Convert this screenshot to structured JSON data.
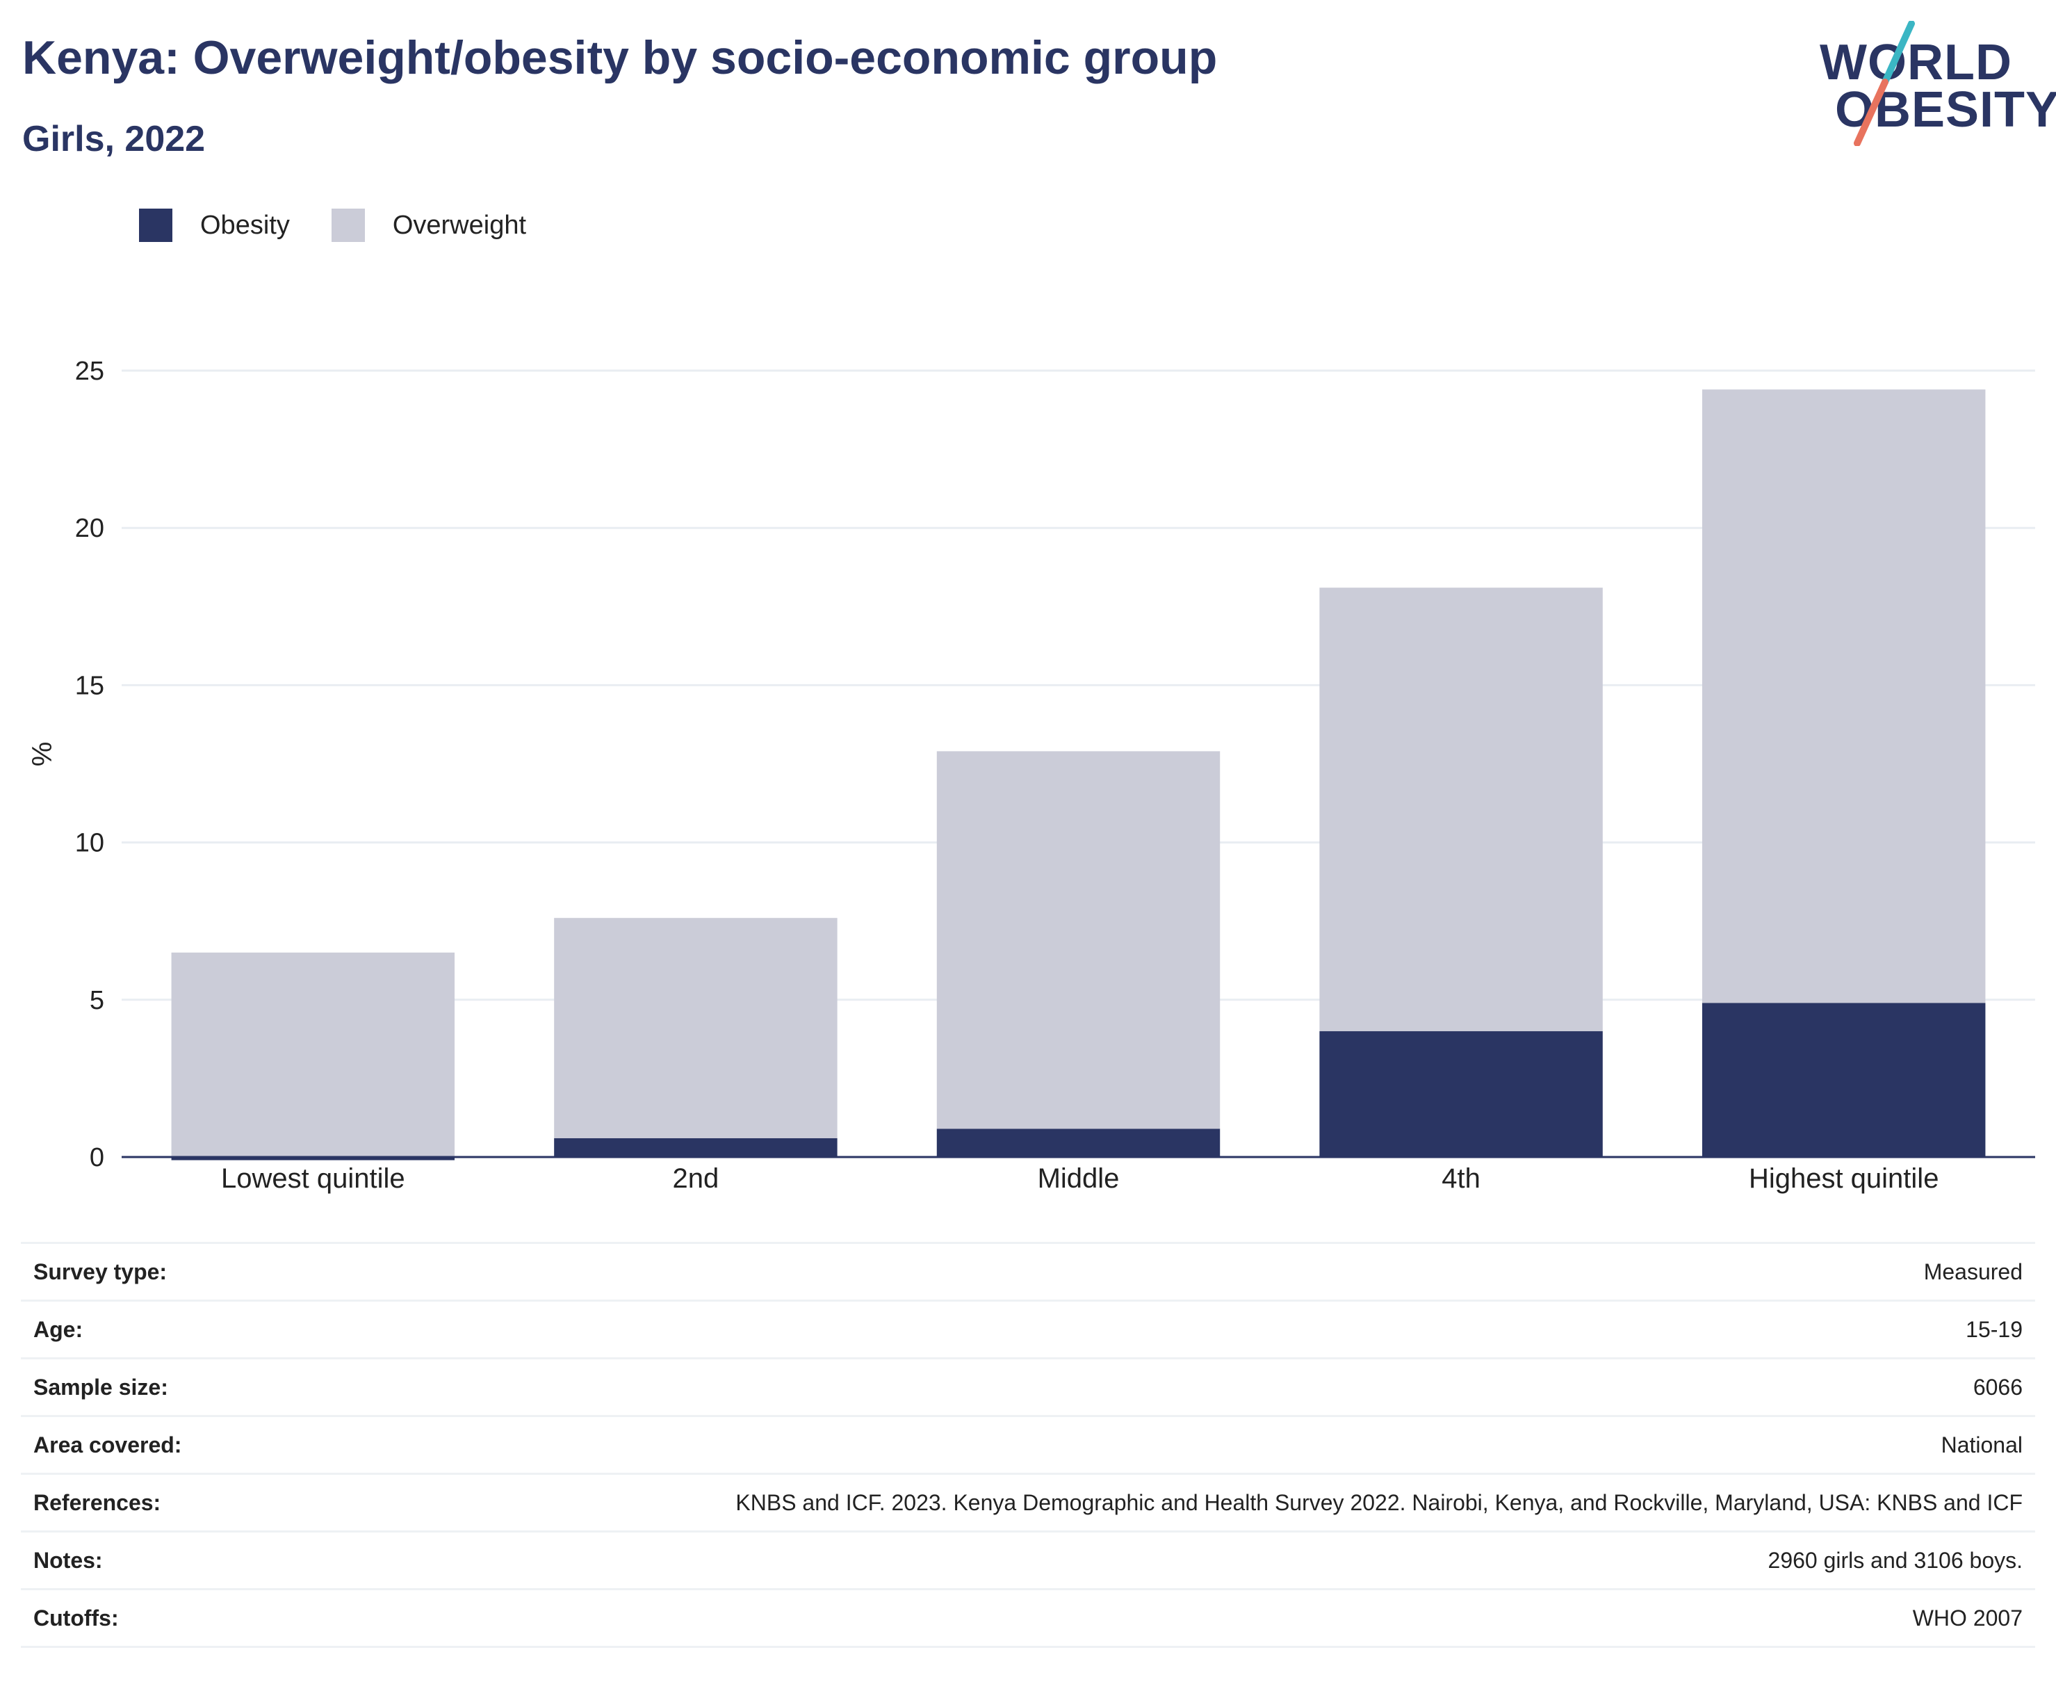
{
  "header": {
    "title": "Kenya: Overweight/obesity by socio-economic group",
    "subtitle": "Girls, 2022"
  },
  "logo": {
    "line1": "WORLD",
    "line2": "OBESITY",
    "slash_color_top": "#3bb6c4",
    "slash_color_bottom": "#e8735e"
  },
  "colors": {
    "obesity": "#2a3563",
    "overweight": "#cbccd8",
    "grid": "#e9edf2",
    "axis": "#2a3563"
  },
  "legend": {
    "obesity_label": "Obesity",
    "overweight_label": "Overweight"
  },
  "chart_data": {
    "type": "bar",
    "stacked": true,
    "categories": [
      "Lowest quintile",
      "2nd",
      "Middle",
      "4th",
      "Highest quintile"
    ],
    "series": [
      {
        "name": "Obesity",
        "values": [
          -0.1,
          0.6,
          0.9,
          4.0,
          4.9
        ]
      },
      {
        "name": "Overweight",
        "values": [
          6.5,
          7.0,
          12.0,
          14.1,
          19.5
        ]
      }
    ],
    "totals": [
      6.4,
      7.6,
      12.9,
      18.1,
      24.4
    ],
    "ylabel": "%",
    "xlabel": "",
    "ylim": [
      0,
      25
    ],
    "yticks": [
      0,
      5,
      10,
      15,
      20,
      25
    ],
    "grid": true,
    "legend_position": "top-left"
  },
  "info_table": [
    {
      "label": "Survey type:",
      "value": "Measured"
    },
    {
      "label": "Age:",
      "value": "15-19"
    },
    {
      "label": "Sample size:",
      "value": "6066"
    },
    {
      "label": "Area covered:",
      "value": "National"
    },
    {
      "label": "References:",
      "value": "KNBS and ICF. 2023. Kenya Demographic and Health Survey 2022. Nairobi, Kenya, and Rockville, Maryland, USA: KNBS and ICF"
    },
    {
      "label": "Notes:",
      "value": "2960 girls and 3106 boys."
    },
    {
      "label": "Cutoffs:",
      "value": "WHO 2007"
    }
  ]
}
